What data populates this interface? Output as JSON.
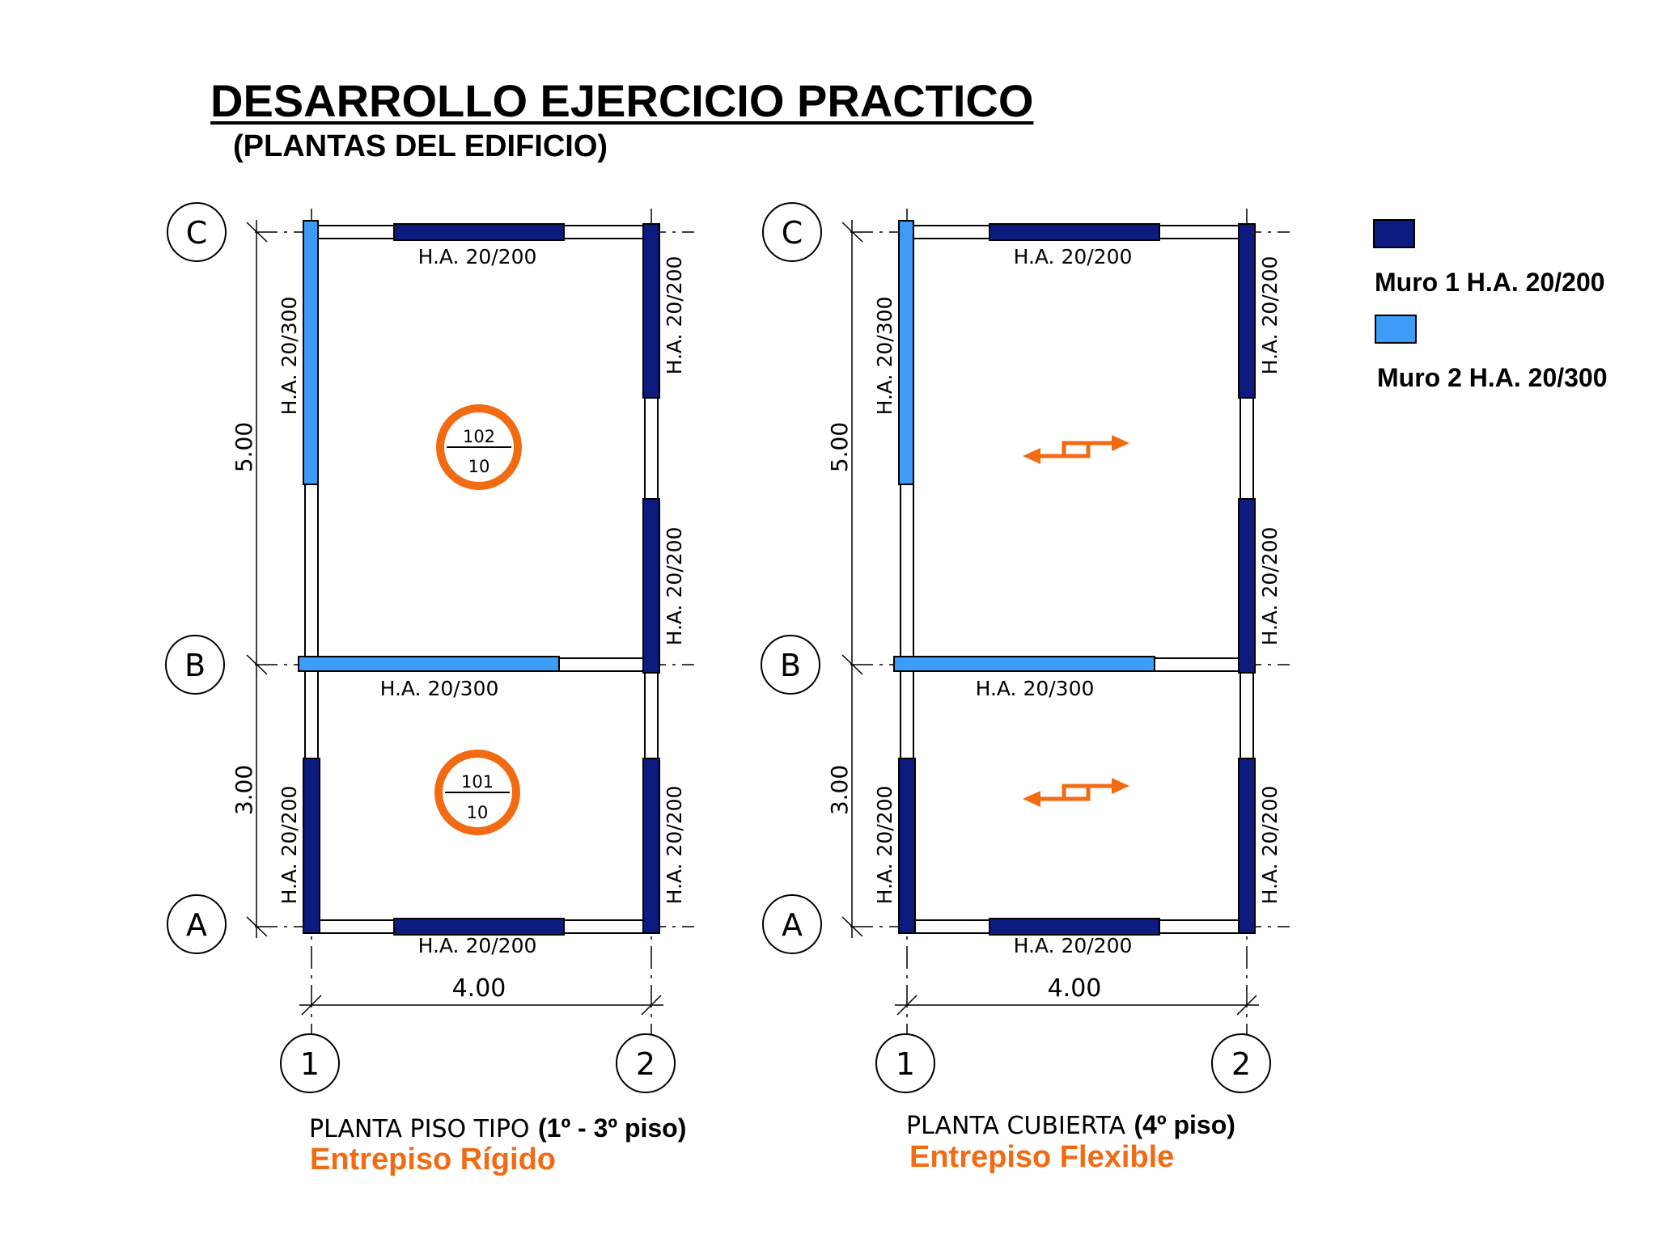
{
  "header": {
    "title": "DESARROLLO EJERCICIO PRACTICO",
    "subtitle": "(PLANTAS DEL EDIFICIO)"
  },
  "colors": {
    "muro1": "#0d1a80",
    "muro2": "#3d9cf5",
    "accent": "#f26a12"
  },
  "legend": [
    {
      "label": "Muro 1 H.A. 20/200",
      "color": "#0d1a80"
    },
    {
      "label": "Muro 2 H.A. 20/300",
      "color": "#3d9cf5"
    }
  ],
  "grid": {
    "rows": [
      "C",
      "B",
      "A"
    ],
    "cols": [
      "1",
      "2"
    ],
    "dim_upper": "5.00",
    "dim_lower": "3.00",
    "dim_width": "4.00"
  },
  "walls": {
    "w200": "H.A. 20/200",
    "w300": "H.A. 20/300"
  },
  "plans": [
    {
      "title": "PLANTA PISO TIPO",
      "floor": "(1º - 3º piso)",
      "slab": "Entrepiso Rígido",
      "diaphragm_upper": {
        "top": "102",
        "bottom": "10"
      },
      "diaphragm_lower": {
        "top": "101",
        "bottom": "10"
      }
    },
    {
      "title": "PLANTA CUBIERTA",
      "floor": "(4º piso)",
      "slab": "Entrepiso Flexible"
    }
  ]
}
